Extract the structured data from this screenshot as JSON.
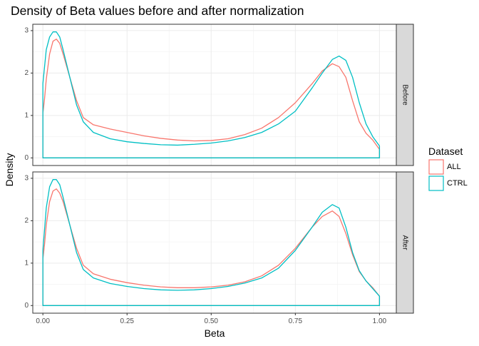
{
  "chart_data": {
    "type": "line",
    "title": "Density of Beta values before and after normalization",
    "xlabel": "Beta",
    "ylabel": "Density",
    "xlim": [
      -0.03,
      1.05
    ],
    "ylim": [
      -0.18,
      3.15
    ],
    "x_ticks": [
      0.0,
      0.25,
      0.5,
      0.75,
      1.0
    ],
    "x_tick_labels": [
      "0.00",
      "0.25",
      "0.50",
      "0.75",
      "1.00"
    ],
    "y_ticks": [
      0,
      1,
      2,
      3
    ],
    "y_tick_labels": [
      "0",
      "1",
      "2",
      "3"
    ],
    "grid": true,
    "legend": {
      "title": "Dataset",
      "position": "right",
      "entries": [
        {
          "label": "ALL",
          "color": "#F8766D"
        },
        {
          "label": "CTRL",
          "color": "#00BFC4"
        }
      ]
    },
    "facets": [
      {
        "label": "Before",
        "series": [
          {
            "name": "ALL",
            "color": "#F8766D",
            "x": [
              0.0,
              0.005,
              0.01,
              0.02,
              0.03,
              0.04,
              0.05,
              0.06,
              0.08,
              0.1,
              0.12,
              0.15,
              0.2,
              0.25,
              0.3,
              0.35,
              0.4,
              0.45,
              0.5,
              0.55,
              0.6,
              0.65,
              0.7,
              0.75,
              0.8,
              0.83,
              0.86,
              0.88,
              0.9,
              0.92,
              0.94,
              0.96,
              0.98,
              1.0
            ],
            "values": [
              1.05,
              1.4,
              1.85,
              2.45,
              2.75,
              2.8,
              2.7,
              2.45,
              1.9,
              1.35,
              0.95,
              0.78,
              0.68,
              0.6,
              0.52,
              0.46,
              0.42,
              0.4,
              0.41,
              0.45,
              0.55,
              0.7,
              0.95,
              1.3,
              1.75,
              2.05,
              2.22,
              2.15,
              1.9,
              1.35,
              0.85,
              0.58,
              0.42,
              0.2
            ]
          },
          {
            "name": "CTRL",
            "color": "#00BFC4",
            "x": [
              0.0,
              0.005,
              0.01,
              0.02,
              0.03,
              0.04,
              0.05,
              0.06,
              0.08,
              0.1,
              0.12,
              0.15,
              0.2,
              0.25,
              0.3,
              0.35,
              0.4,
              0.45,
              0.5,
              0.55,
              0.6,
              0.65,
              0.7,
              0.75,
              0.8,
              0.83,
              0.86,
              0.88,
              0.9,
              0.92,
              0.94,
              0.96,
              0.98,
              1.0
            ],
            "values": [
              1.75,
              2.15,
              2.55,
              2.85,
              2.97,
              2.97,
              2.85,
              2.55,
              1.9,
              1.25,
              0.85,
              0.6,
              0.45,
              0.38,
              0.34,
              0.31,
              0.3,
              0.32,
              0.35,
              0.4,
              0.48,
              0.6,
              0.8,
              1.1,
              1.65,
              2.0,
              2.32,
              2.4,
              2.3,
              1.9,
              1.3,
              0.8,
              0.5,
              0.28
            ]
          }
        ]
      },
      {
        "label": "After",
        "series": [
          {
            "name": "ALL",
            "color": "#F8766D",
            "x": [
              0.0,
              0.005,
              0.01,
              0.02,
              0.03,
              0.04,
              0.05,
              0.06,
              0.08,
              0.1,
              0.12,
              0.15,
              0.2,
              0.25,
              0.3,
              0.35,
              0.4,
              0.45,
              0.5,
              0.55,
              0.6,
              0.65,
              0.7,
              0.75,
              0.8,
              0.83,
              0.86,
              0.88,
              0.9,
              0.92,
              0.94,
              0.96,
              0.98,
              1.0
            ],
            "values": [
              1.1,
              1.45,
              1.9,
              2.45,
              2.7,
              2.75,
              2.65,
              2.45,
              1.9,
              1.35,
              0.95,
              0.75,
              0.62,
              0.54,
              0.48,
              0.44,
              0.42,
              0.42,
              0.44,
              0.48,
              0.56,
              0.7,
              0.95,
              1.35,
              1.85,
              2.1,
              2.23,
              2.1,
              1.7,
              1.2,
              0.8,
              0.58,
              0.42,
              0.22
            ]
          },
          {
            "name": "CTRL",
            "color": "#00BFC4",
            "x": [
              0.0,
              0.005,
              0.01,
              0.02,
              0.03,
              0.04,
              0.05,
              0.06,
              0.08,
              0.1,
              0.12,
              0.15,
              0.2,
              0.25,
              0.3,
              0.35,
              0.4,
              0.45,
              0.5,
              0.55,
              0.6,
              0.65,
              0.7,
              0.75,
              0.8,
              0.83,
              0.86,
              0.88,
              0.9,
              0.92,
              0.94,
              0.96,
              0.98,
              1.0
            ],
            "values": [
              1.3,
              1.8,
              2.3,
              2.8,
              2.97,
              2.97,
              2.85,
              2.55,
              1.9,
              1.25,
              0.85,
              0.65,
              0.52,
              0.45,
              0.4,
              0.37,
              0.36,
              0.37,
              0.4,
              0.45,
              0.53,
              0.65,
              0.88,
              1.3,
              1.85,
              2.2,
              2.38,
              2.3,
              1.85,
              1.25,
              0.82,
              0.58,
              0.4,
              0.22
            ]
          }
        ]
      }
    ]
  }
}
